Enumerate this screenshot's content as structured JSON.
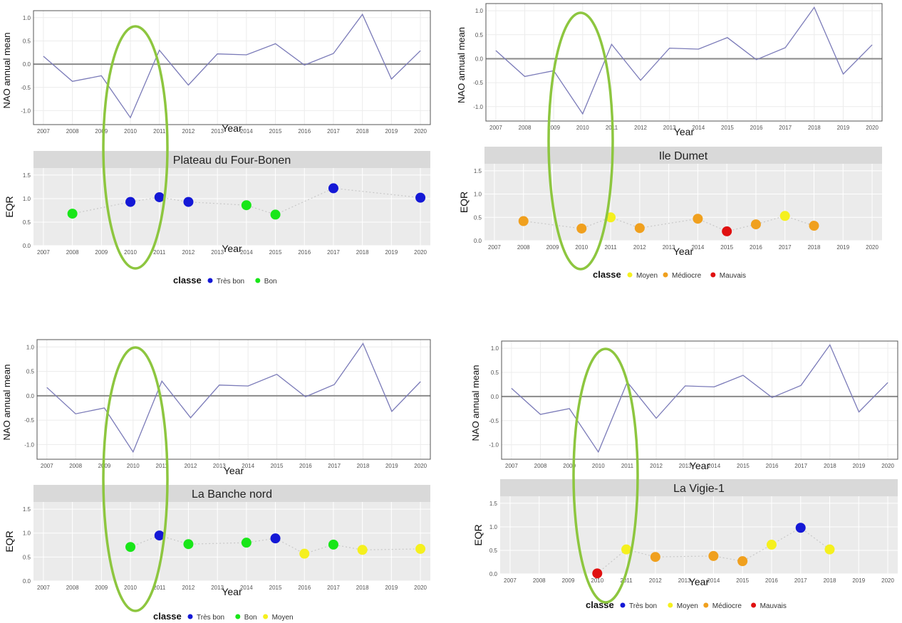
{
  "nao": {
    "years": [
      2007,
      2008,
      2009,
      2010,
      2011,
      2012,
      2013,
      2014,
      2015,
      2016,
      2017,
      2018,
      2019,
      2020
    ],
    "values": [
      0.17,
      -0.37,
      -0.25,
      -1.15,
      0.3,
      -0.45,
      0.22,
      0.2,
      0.44,
      -0.02,
      0.23,
      1.07,
      -0.32,
      0.29
    ],
    "ylabel": "NAO annual mean",
    "xlabel": "Year",
    "ylim": [
      -1.3,
      1.15
    ],
    "yticks": [
      "-1.0",
      "-0.5",
      "0.0",
      "0.5",
      "1.0"
    ],
    "line_color": "#7a7ab8"
  },
  "eqr": {
    "ylabel": "EQR",
    "xlabel": "Year",
    "ylim": [
      0,
      1.65
    ],
    "yticks": [
      "0.0",
      "0.5",
      "1.0",
      "1.5"
    ],
    "legend_title": "classe"
  },
  "classes": {
    "Très bon": "#1418d6",
    "Bon": "#19e619",
    "Moyen": "#f5f01e",
    "Médiocre": "#f0a01e",
    "Mauvais": "#e01010"
  },
  "highlight": {
    "year": 2010,
    "color": "#8dc63f"
  },
  "chart_data": [
    {
      "type": "scatter",
      "title": "Plateau du Four-Bonen",
      "xlabel": "Year",
      "ylabel": "EQR",
      "ylim": [
        0,
        1.65
      ],
      "legend": [
        "Très bon",
        "Bon"
      ],
      "points": [
        {
          "year": 2008,
          "value": 0.68,
          "classe": "Bon"
        },
        {
          "year": 2010,
          "value": 0.93,
          "classe": "Très bon"
        },
        {
          "year": 2011,
          "value": 1.03,
          "classe": "Très bon"
        },
        {
          "year": 2012,
          "value": 0.93,
          "classe": "Très bon"
        },
        {
          "year": 2014,
          "value": 0.86,
          "classe": "Bon"
        },
        {
          "year": 2015,
          "value": 0.66,
          "classe": "Bon"
        },
        {
          "year": 2017,
          "value": 1.22,
          "classe": "Très bon"
        },
        {
          "year": 2020,
          "value": 1.02,
          "classe": "Très bon"
        }
      ]
    },
    {
      "type": "scatter",
      "title": "Ile Dumet",
      "xlabel": "Year",
      "ylabel": "EQR",
      "ylim": [
        0,
        1.65
      ],
      "legend": [
        "Moyen",
        "Médiocre",
        "Mauvais"
      ],
      "points": [
        {
          "year": 2008,
          "value": 0.42,
          "classe": "Médiocre"
        },
        {
          "year": 2010,
          "value": 0.26,
          "classe": "Médiocre"
        },
        {
          "year": 2011,
          "value": 0.5,
          "classe": "Moyen"
        },
        {
          "year": 2012,
          "value": 0.27,
          "classe": "Médiocre"
        },
        {
          "year": 2014,
          "value": 0.47,
          "classe": "Médiocre"
        },
        {
          "year": 2015,
          "value": 0.2,
          "classe": "Mauvais"
        },
        {
          "year": 2016,
          "value": 0.35,
          "classe": "Médiocre"
        },
        {
          "year": 2017,
          "value": 0.53,
          "classe": "Moyen"
        },
        {
          "year": 2018,
          "value": 0.32,
          "classe": "Médiocre"
        }
      ]
    },
    {
      "type": "scatter",
      "title": "La Banche nord",
      "xlabel": "Year",
      "ylabel": "EQR",
      "ylim": [
        0,
        1.65
      ],
      "legend": [
        "Très bon",
        "Bon",
        "Moyen"
      ],
      "points": [
        {
          "year": 2010,
          "value": 0.71,
          "classe": "Bon"
        },
        {
          "year": 2011,
          "value": 0.95,
          "classe": "Très bon"
        },
        {
          "year": 2012,
          "value": 0.77,
          "classe": "Bon"
        },
        {
          "year": 2014,
          "value": 0.8,
          "classe": "Bon"
        },
        {
          "year": 2015,
          "value": 0.89,
          "classe": "Très bon"
        },
        {
          "year": 2016,
          "value": 0.57,
          "classe": "Moyen"
        },
        {
          "year": 2017,
          "value": 0.76,
          "classe": "Bon"
        },
        {
          "year": 2018,
          "value": 0.65,
          "classe": "Moyen"
        },
        {
          "year": 2020,
          "value": 0.67,
          "classe": "Moyen"
        }
      ]
    },
    {
      "type": "scatter",
      "title": "La Vigie-1",
      "xlabel": "Year",
      "ylabel": "EQR",
      "ylim": [
        0,
        1.65
      ],
      "legend": [
        "Très bon",
        "Moyen",
        "Médiocre",
        "Mauvais"
      ],
      "points": [
        {
          "year": 2010,
          "value": 0.01,
          "classe": "Mauvais"
        },
        {
          "year": 2011,
          "value": 0.52,
          "classe": "Moyen"
        },
        {
          "year": 2012,
          "value": 0.36,
          "classe": "Médiocre"
        },
        {
          "year": 2014,
          "value": 0.38,
          "classe": "Médiocre"
        },
        {
          "year": 2015,
          "value": 0.27,
          "classe": "Médiocre"
        },
        {
          "year": 2016,
          "value": 0.62,
          "classe": "Moyen"
        },
        {
          "year": 2017,
          "value": 0.98,
          "classe": "Très bon"
        },
        {
          "year": 2018,
          "value": 0.52,
          "classe": "Moyen"
        }
      ]
    }
  ]
}
